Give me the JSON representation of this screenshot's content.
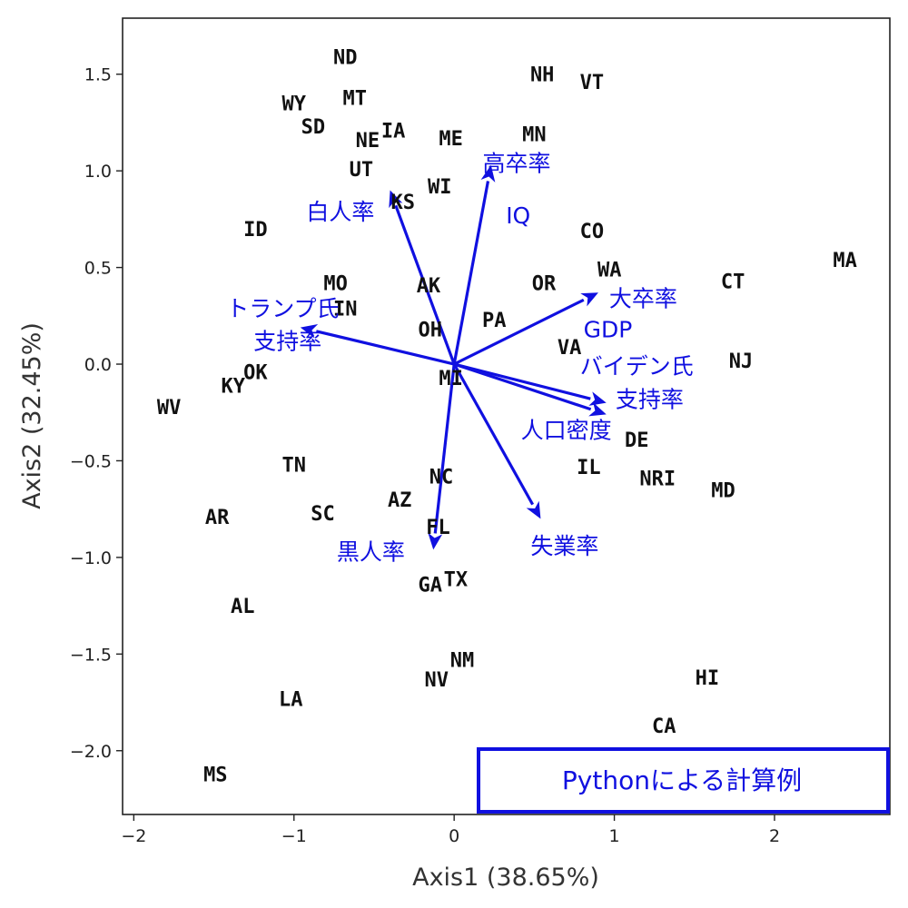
{
  "chart_data": {
    "type": "scatter",
    "title": "",
    "xlabel": "Axis1  (38.65%)",
    "ylabel": "Axis2  (32.45%)",
    "xlim": [
      -2.07,
      2.72
    ],
    "ylim": [
      -2.33,
      1.79
    ],
    "xticks": [
      -2,
      -1,
      0,
      1,
      2
    ],
    "yticks": [
      -2.0,
      -1.5,
      -1.0,
      -0.5,
      0.0,
      0.5,
      1.0,
      1.5
    ],
    "xtick_labels": [
      "−2",
      "−1",
      "0",
      "1",
      "2"
    ],
    "ytick_labels": [
      "−2.0",
      "−1.5",
      "−1.0",
      "−0.5",
      "0.0",
      "0.5",
      "1.0",
      "1.5"
    ],
    "grid": false,
    "vector_color": "#1010e0",
    "point_color": "#111111",
    "points": [
      {
        "label": "ND",
        "x": -0.68,
        "y": 1.59
      },
      {
        "label": "NH",
        "x": 0.55,
        "y": 1.5
      },
      {
        "label": "VT",
        "x": 0.86,
        "y": 1.46
      },
      {
        "label": "WY",
        "x": -1.0,
        "y": 1.35
      },
      {
        "label": "MT",
        "x": -0.62,
        "y": 1.38
      },
      {
        "label": "SD",
        "x": -0.88,
        "y": 1.23
      },
      {
        "label": "IA",
        "x": -0.38,
        "y": 1.21
      },
      {
        "label": "NE",
        "x": -0.54,
        "y": 1.16
      },
      {
        "label": "ME",
        "x": -0.02,
        "y": 1.17
      },
      {
        "label": "MN",
        "x": 0.5,
        "y": 1.19
      },
      {
        "label": "UT",
        "x": -0.58,
        "y": 1.01
      },
      {
        "label": "WI",
        "x": -0.09,
        "y": 0.92
      },
      {
        "label": "KS",
        "x": -0.32,
        "y": 0.84
      },
      {
        "label": "ID",
        "x": -1.24,
        "y": 0.7
      },
      {
        "label": "CO",
        "x": 0.86,
        "y": 0.69
      },
      {
        "label": "MA",
        "x": 2.44,
        "y": 0.54
      },
      {
        "label": "WA",
        "x": 0.97,
        "y": 0.49
      },
      {
        "label": "CT",
        "x": 1.74,
        "y": 0.43
      },
      {
        "label": "OR",
        "x": 0.56,
        "y": 0.42
      },
      {
        "label": "MO",
        "x": -0.74,
        "y": 0.42
      },
      {
        "label": "AK",
        "x": -0.16,
        "y": 0.41
      },
      {
        "label": "IN",
        "x": -0.68,
        "y": 0.29
      },
      {
        "label": "PA",
        "x": 0.25,
        "y": 0.23
      },
      {
        "label": "OH",
        "x": -0.15,
        "y": 0.18
      },
      {
        "label": "VA",
        "x": 0.72,
        "y": 0.09
      },
      {
        "label": "NJ",
        "x": 1.79,
        "y": 0.02
      },
      {
        "label": "OK",
        "x": -1.24,
        "y": -0.04
      },
      {
        "label": "MI",
        "x": -0.02,
        "y": -0.07
      },
      {
        "label": "KY",
        "x": -1.38,
        "y": -0.11
      },
      {
        "label": "WV",
        "x": -1.78,
        "y": -0.22
      },
      {
        "label": "DE",
        "x": 1.14,
        "y": -0.39
      },
      {
        "label": "TN",
        "x": -1.0,
        "y": -0.52
      },
      {
        "label": "IL",
        "x": 0.84,
        "y": -0.53
      },
      {
        "label": "NC",
        "x": -0.08,
        "y": -0.58
      },
      {
        "label": "NRI",
        "x": 1.27,
        "y": -0.59
      },
      {
        "label": "MD",
        "x": 1.68,
        "y": -0.65
      },
      {
        "label": "AZ",
        "x": -0.34,
        "y": -0.7
      },
      {
        "label": "SC",
        "x": -0.82,
        "y": -0.77
      },
      {
        "label": "AR",
        "x": -1.48,
        "y": -0.79
      },
      {
        "label": "FL",
        "x": -0.1,
        "y": -0.84
      },
      {
        "label": "TX",
        "x": 0.01,
        "y": -1.11
      },
      {
        "label": "GA",
        "x": -0.15,
        "y": -1.14
      },
      {
        "label": "AL",
        "x": -1.32,
        "y": -1.25
      },
      {
        "label": "NM",
        "x": 0.05,
        "y": -1.53
      },
      {
        "label": "NV",
        "x": -0.11,
        "y": -1.63
      },
      {
        "label": "HI",
        "x": 1.58,
        "y": -1.62
      },
      {
        "label": "LA",
        "x": -1.02,
        "y": -1.73
      },
      {
        "label": "CA",
        "x": 1.31,
        "y": -1.87
      },
      {
        "label": "MS",
        "x": -1.49,
        "y": -2.12
      }
    ],
    "vectors": [
      {
        "label": "高卒率",
        "x": 0.23,
        "y": 1.03
      },
      {
        "label": "白人率",
        "x": -0.4,
        "y": 0.9
      },
      {
        "label": "大卒率",
        "x": 0.9,
        "y": 0.37
      },
      {
        "label": "トランプ氏支持率",
        "x": -0.96,
        "y": 0.19
      },
      {
        "label": "バイデン氏支持率",
        "x": 0.95,
        "y": -0.2
      },
      {
        "label": "人口密度",
        "x": 0.95,
        "y": -0.26
      },
      {
        "label": "失業率",
        "x": 0.54,
        "y": -0.8
      },
      {
        "label": "黒人率",
        "x": -0.13,
        "y": -0.96
      },
      {
        "label": "IQ",
        "x": 0.0,
        "y": 0.0
      },
      {
        "label": "GDP",
        "x": 0.0,
        "y": 0.0
      }
    ],
    "vector_labels": [
      {
        "text": "高卒率",
        "x": 0.39,
        "y": 1.04
      },
      {
        "text": "IQ",
        "x": 0.4,
        "y": 0.77
      },
      {
        "text": "白人率",
        "x": -0.71,
        "y": 0.79
      },
      {
        "text": "大卒率",
        "x": 1.18,
        "y": 0.34
      },
      {
        "text": "GDP",
        "x": 0.96,
        "y": 0.18
      },
      {
        "text": "トランプ氏",
        "x": -1.07,
        "y": 0.29
      },
      {
        "text": "支持率",
        "x": -1.04,
        "y": 0.12
      },
      {
        "text": "バイデン氏",
        "x": 1.14,
        "y": -0.01
      },
      {
        "text": "支持率",
        "x": 1.22,
        "y": -0.18
      },
      {
        "text": "人口密度",
        "x": 0.7,
        "y": -0.34
      },
      {
        "text": "失業率",
        "x": 0.69,
        "y": -0.94
      },
      {
        "text": "黒人率",
        "x": -0.52,
        "y": -0.97
      }
    ]
  },
  "note": {
    "text": "Pythonによる計算例",
    "color": "#1010e0"
  }
}
